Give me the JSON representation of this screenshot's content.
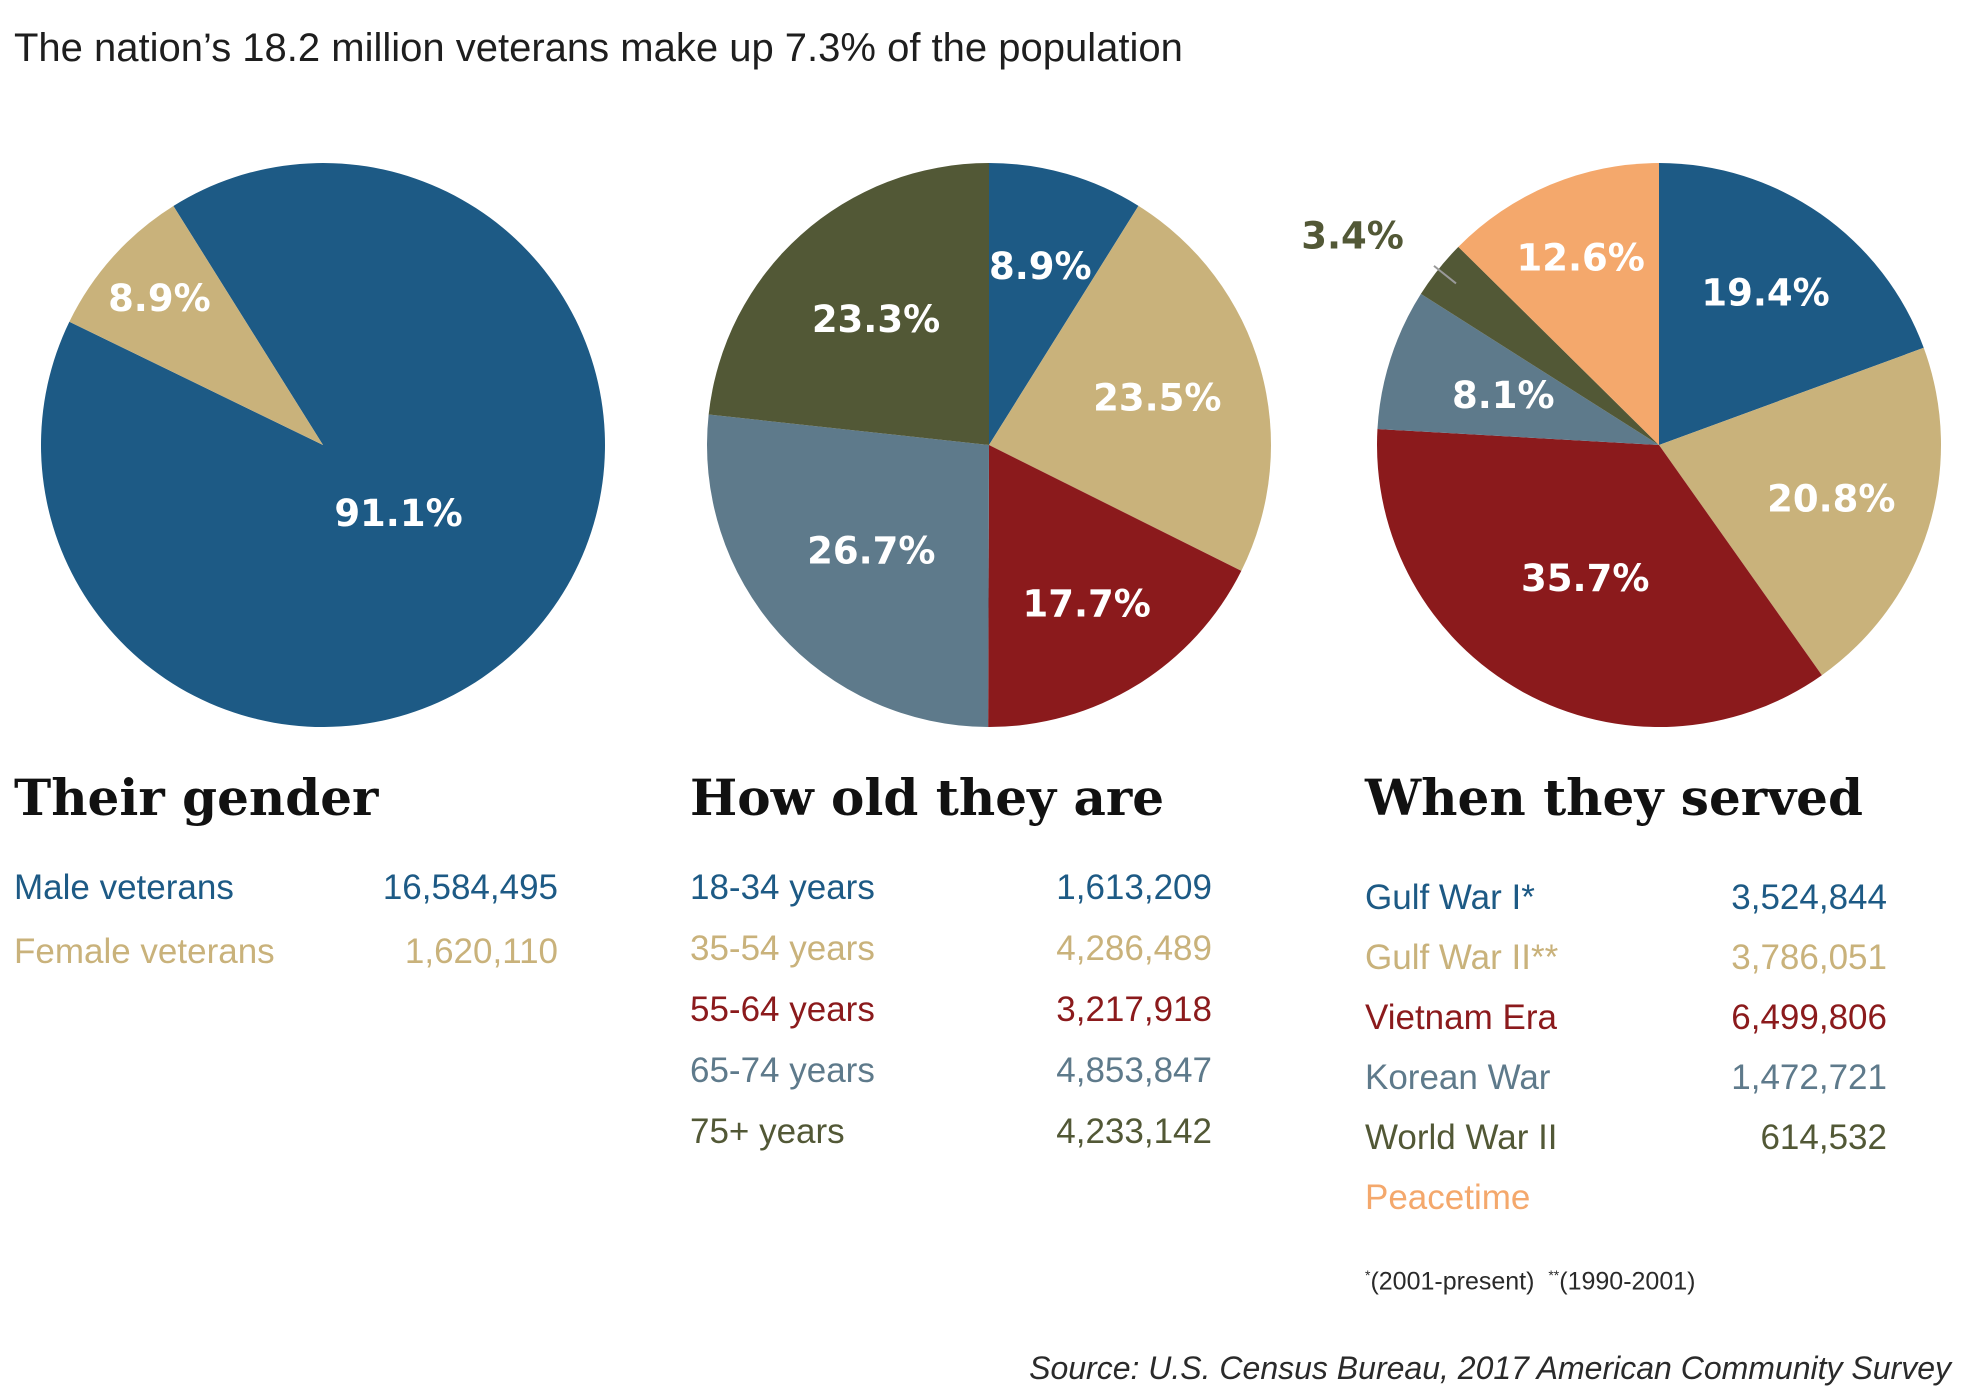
{
  "title": "The nation’s 18.2 million veterans make up 7.3% of the population",
  "colors": {
    "blue": "#1d5a85",
    "tan": "#c9b27b",
    "red": "#8b1a1c",
    "slate": "#5e7a8b",
    "olive": "#525836",
    "orange": "#f4a86c"
  },
  "chart_data": [
    {
      "type": "pie",
      "title": "Their gender",
      "slices": [
        {
          "label": "Male veterans",
          "value": 91.1,
          "display": "91.1%",
          "count": "16,584,495",
          "color": "#1d5a85"
        },
        {
          "label": "Female veterans",
          "value": 8.9,
          "display": "8.9%",
          "count": "1,620,110",
          "color": "#c9b27b"
        }
      ]
    },
    {
      "type": "pie",
      "title": "How old they are",
      "slices": [
        {
          "label": "18-34 years",
          "value": 8.9,
          "display": "8.9%",
          "count": "1,613,209",
          "color": "#1d5a85"
        },
        {
          "label": "35-54 years",
          "value": 23.5,
          "display": "23.5%",
          "count": "4,286,489",
          "color": "#c9b27b"
        },
        {
          "label": "55-64 years",
          "value": 17.7,
          "display": "17.7%",
          "count": "3,217,918",
          "color": "#8b1a1c"
        },
        {
          "label": "65-74 years",
          "value": 26.7,
          "display": "26.7%",
          "count": "4,853,847",
          "color": "#5e7a8b"
        },
        {
          "label": "75+ years",
          "value": 23.3,
          "display": "23.3%",
          "count": "4,233,142",
          "color": "#525836"
        }
      ]
    },
    {
      "type": "pie",
      "title": "When they served",
      "slices": [
        {
          "label": "Gulf War I*",
          "value": 19.4,
          "display": "19.4%",
          "count": "3,524,844",
          "color": "#1d5a85"
        },
        {
          "label": "Gulf War II**",
          "value": 20.8,
          "display": "20.8%",
          "count": "3,786,051",
          "color": "#c9b27b"
        },
        {
          "label": "Vietnam Era",
          "value": 35.7,
          "display": "35.7%",
          "count": "6,499,806",
          "color": "#8b1a1c"
        },
        {
          "label": "Korean War",
          "value": 8.1,
          "display": "8.1%",
          "count": "1,472,721",
          "color": "#5e7a8b"
        },
        {
          "label": "World War II",
          "value": 3.4,
          "display": "3.4%",
          "count": "614,532",
          "color": "#525836"
        },
        {
          "label": "Peacetime",
          "value": 12.6,
          "display": "12.6%",
          "count": "",
          "color": "#f4a86c"
        }
      ]
    }
  ],
  "footnote": {
    "mark1": "*",
    "text1": "(2001-present)",
    "mark2": "**",
    "text2": "(1990-2001)"
  },
  "source": "Source: U.S. Census Bureau, 2017 American Community Survey"
}
